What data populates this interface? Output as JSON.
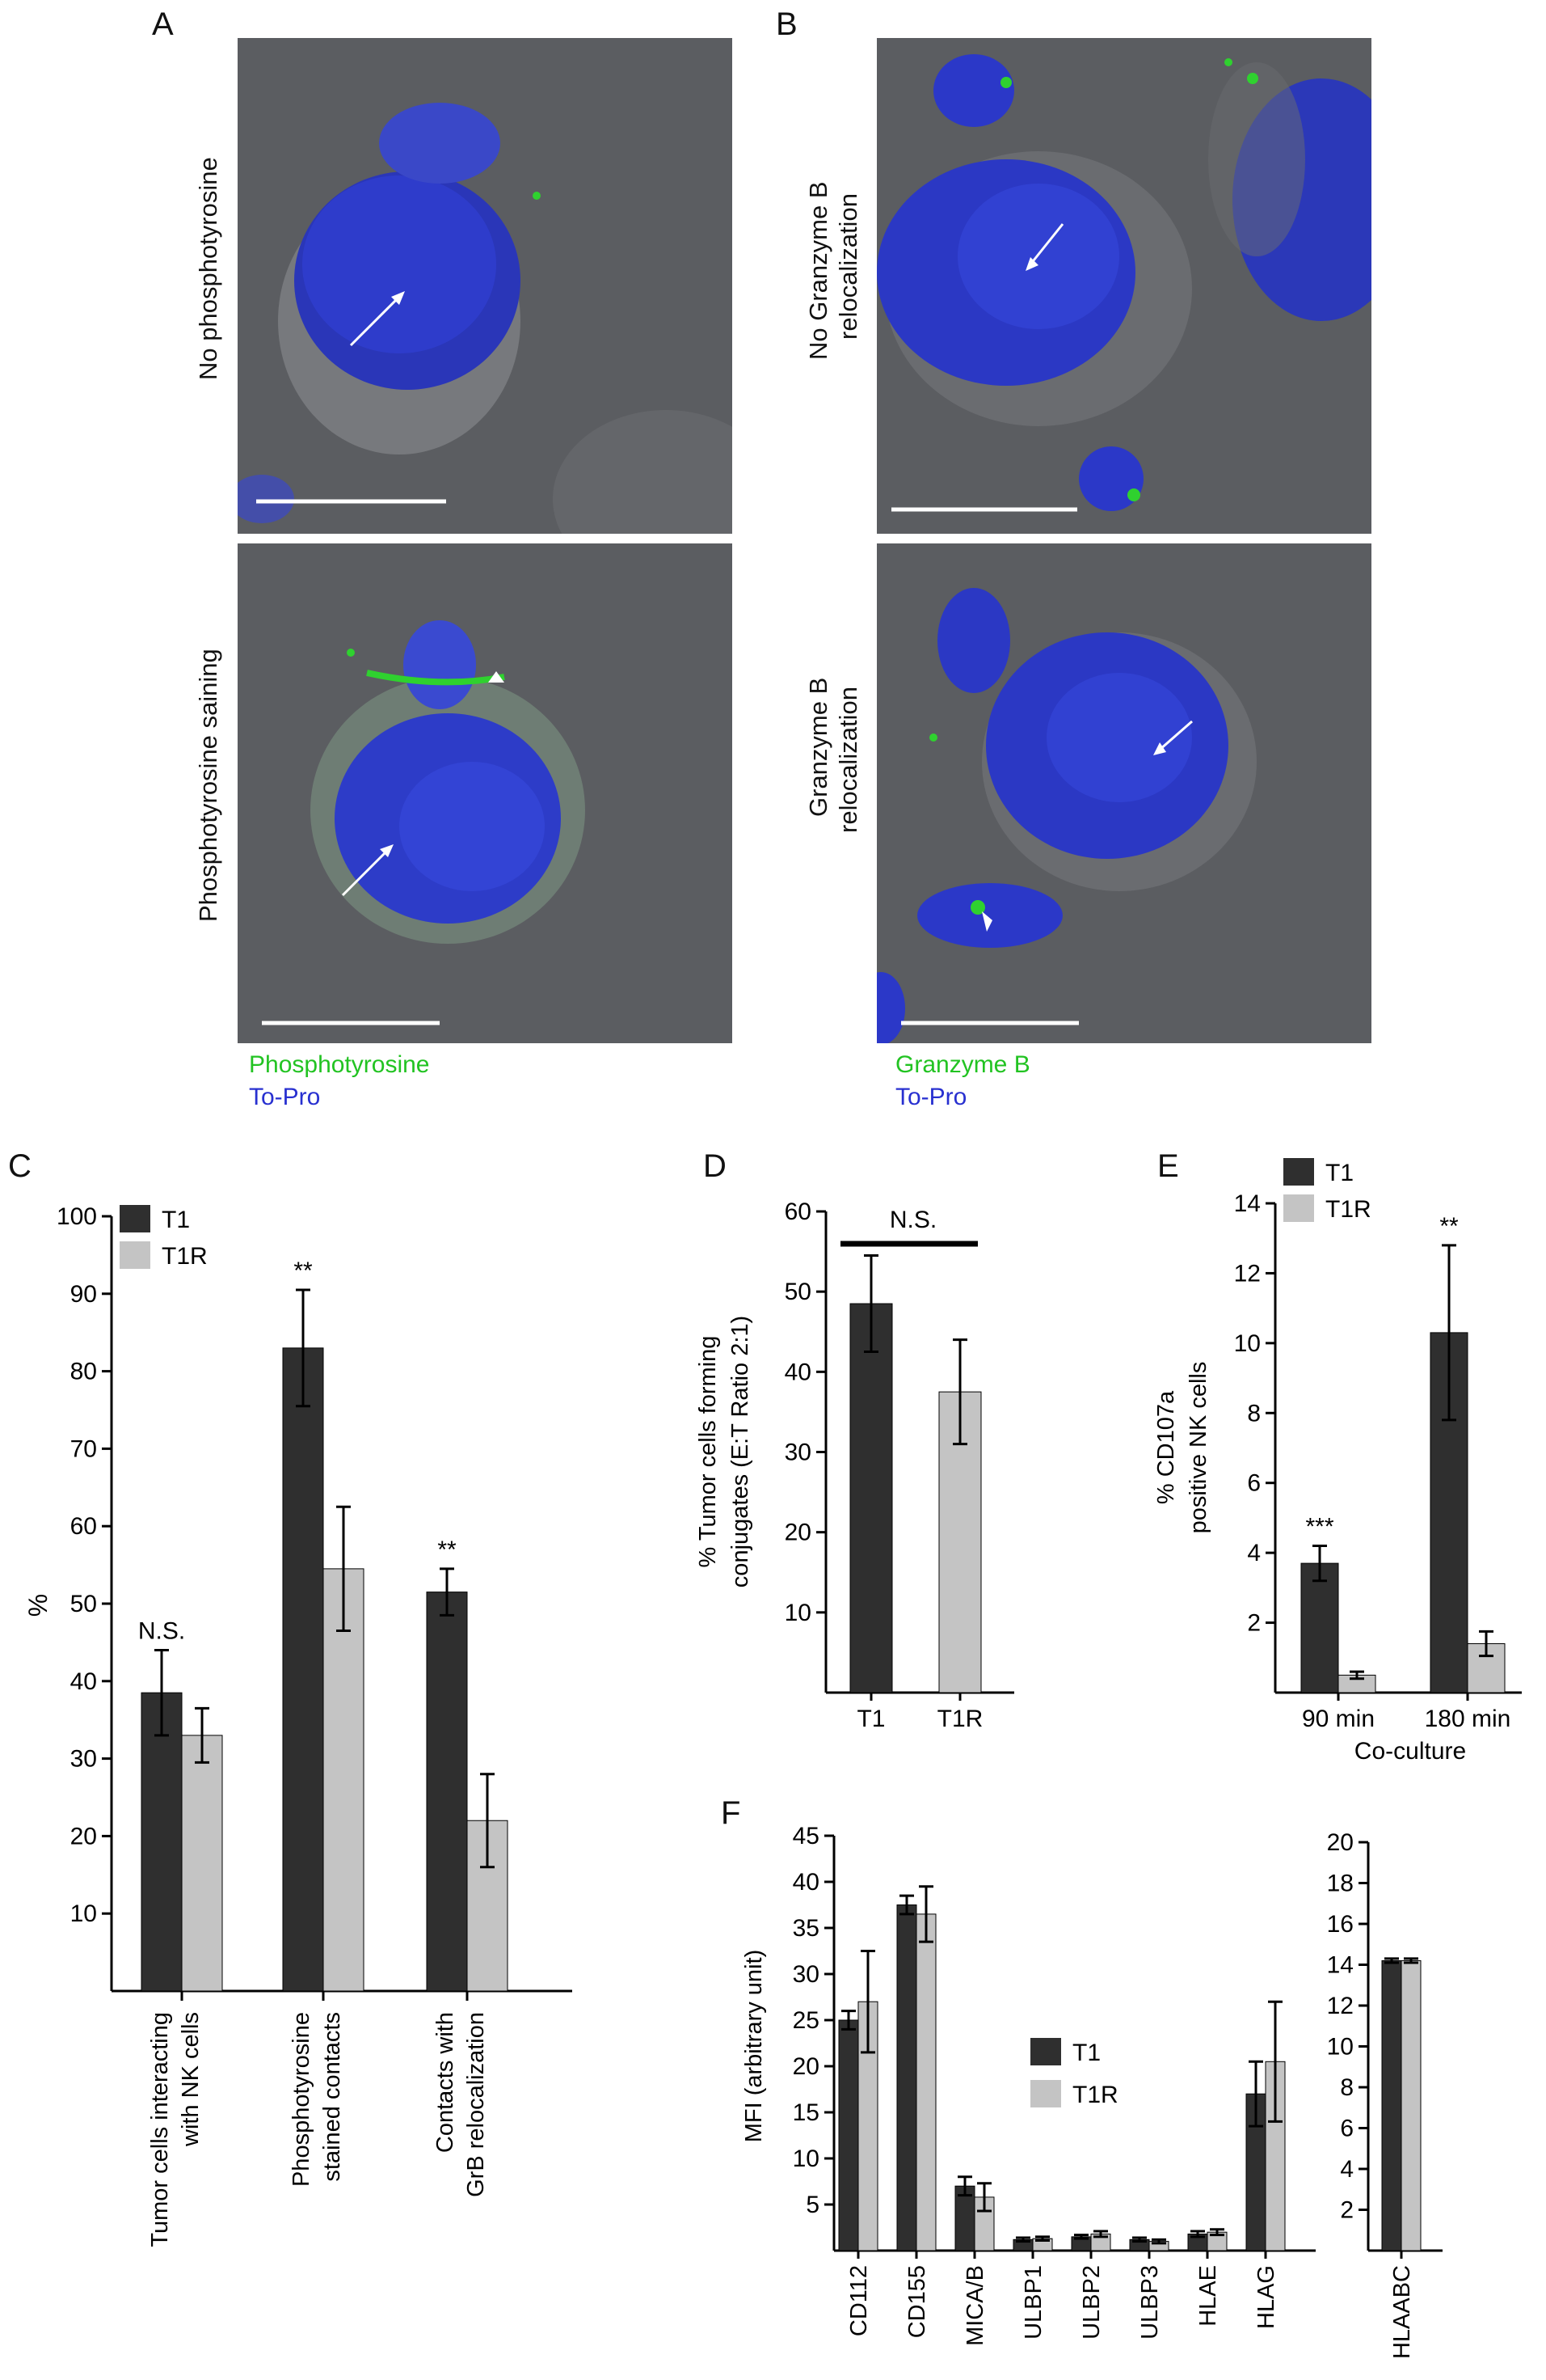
{
  "panels": {
    "A": {
      "label": "A",
      "top_row_label": "No phosphotyrosine",
      "bottom_row_label": "Phosphotyrosine saining",
      "legend": [
        {
          "text": "Phosphotyrosine",
          "color": "#22c322"
        },
        {
          "text": "To-Pro",
          "color": "#2830d0"
        }
      ]
    },
    "B": {
      "label": "B",
      "top_row_label_1": "No Granzyme B",
      "top_row_label_2": "relocalization",
      "bottom_row_label_1": "Granzyme B",
      "bottom_row_label_2": "relocalization",
      "legend": [
        {
          "text": "Granzyme B",
          "color": "#22c322"
        },
        {
          "text": "To-Pro",
          "color": "#2830d0"
        }
      ]
    },
    "C": {
      "label": "C"
    },
    "D": {
      "label": "D"
    },
    "E": {
      "label": "E"
    },
    "F": {
      "label": "F"
    }
  },
  "colors": {
    "T1": "#2f2f2f",
    "T1R": "#c4c4c4",
    "nucleus": "#1a3fd8",
    "green": "#2fd12f"
  },
  "chart_data": [
    {
      "id": "C",
      "type": "bar",
      "ylabel": "%",
      "ylim": [
        0,
        100
      ],
      "yticks": [
        10,
        20,
        30,
        40,
        50,
        60,
        70,
        80,
        90,
        100
      ],
      "categories": [
        [
          "Tumor cells interacting",
          "with NK cells"
        ],
        [
          "Phosphotyrosine",
          "stained contacts"
        ],
        [
          "Contacts with",
          "GrB relocalization"
        ]
      ],
      "series": [
        {
          "name": "T1",
          "values": [
            38.5,
            83,
            51.5
          ],
          "errors": [
            5.5,
            7.5,
            3
          ]
        },
        {
          "name": "T1R",
          "values": [
            33,
            54.5,
            22
          ],
          "errors": [
            3.5,
            8,
            6
          ]
        }
      ],
      "annotations": [
        "N.S.",
        "**",
        "**"
      ],
      "legend": [
        "T1",
        "T1R"
      ]
    },
    {
      "id": "D",
      "type": "bar",
      "ylabel_1": "% Tumor cells forming",
      "ylabel_2": "conjugates (E:T Ratio 2:1)",
      "ylim": [
        0,
        60
      ],
      "yticks": [
        10,
        20,
        30,
        40,
        50,
        60
      ],
      "categories": [
        "T1",
        "T1R"
      ],
      "values": [
        48.5,
        37.5
      ],
      "errors": [
        6,
        6.5
      ],
      "annotation": "N.S."
    },
    {
      "id": "E",
      "type": "bar",
      "ylabel_1": "% CD107a",
      "ylabel_2": "positive NK cells",
      "xlabel": "Co-culture",
      "ylim": [
        0,
        14
      ],
      "yticks": [
        2,
        4,
        6,
        8,
        10,
        12,
        14
      ],
      "categories": [
        "90 min",
        "180 min"
      ],
      "series": [
        {
          "name": "T1",
          "values": [
            3.7,
            10.3
          ],
          "errors": [
            0.5,
            2.5
          ]
        },
        {
          "name": "T1R",
          "values": [
            0.5,
            1.4
          ],
          "errors": [
            0.1,
            0.35
          ]
        }
      ],
      "annotations": [
        "***",
        "**"
      ],
      "legend": [
        "T1",
        "T1R"
      ]
    },
    {
      "id": "F",
      "type": "bar",
      "ylabel": "MFI (arbitrary unit)",
      "ylim": [
        0,
        45
      ],
      "yticks": [
        5,
        10,
        15,
        20,
        25,
        30,
        35,
        40,
        45
      ],
      "categories": [
        "CD112",
        "CD155",
        "MICA/B",
        "ULBP1",
        "ULBP2",
        "ULBP3",
        "HLAE",
        "HLAG"
      ],
      "series": [
        {
          "name": "T1",
          "values": [
            25,
            37.5,
            7,
            1.2,
            1.5,
            1.2,
            1.8,
            17
          ],
          "errors": [
            1,
            1,
            1,
            0.2,
            0.2,
            0.2,
            0.3,
            3.5
          ]
        },
        {
          "name": "T1R",
          "values": [
            27,
            36.5,
            5.8,
            1.3,
            1.8,
            1,
            2,
            20.5
          ],
          "errors": [
            5.5,
            3,
            1.5,
            0.2,
            0.3,
            0.2,
            0.3,
            6.5
          ]
        }
      ],
      "legend": [
        "T1",
        "T1R"
      ]
    },
    {
      "id": "F2",
      "type": "bar",
      "ylim": [
        0,
        20
      ],
      "yticks": [
        2,
        4,
        6,
        8,
        10,
        12,
        14,
        16,
        18,
        20
      ],
      "categories": [
        "HLAABC"
      ],
      "series": [
        {
          "name": "T1",
          "values": [
            14.2
          ],
          "errors": [
            0.1
          ]
        },
        {
          "name": "T1R",
          "values": [
            14.2
          ],
          "errors": [
            0.1
          ]
        }
      ]
    }
  ]
}
